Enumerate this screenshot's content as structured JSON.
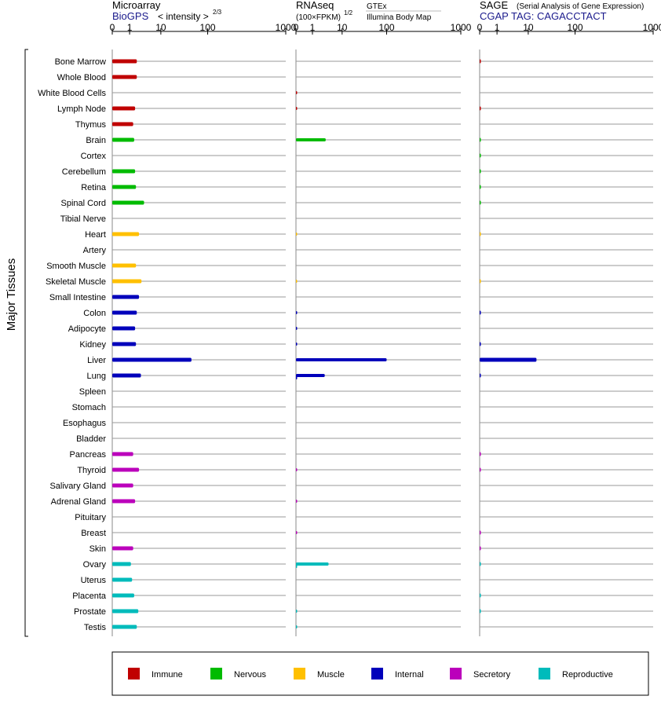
{
  "colors": {
    "immune": "#c00000",
    "nervous": "#00bb00",
    "muscle": "#ffc000",
    "internal": "#0000bb",
    "secretory": "#bb00bb",
    "reproductive": "#00bbbb",
    "link_blue": "#1a1a8c",
    "grid_line": "#999999"
  },
  "headers": {
    "microarray": {
      "title": "Microarray",
      "source": "BioGPS",
      "unit": "< intensity >",
      "unit_exp": "2/3"
    },
    "rnaseq": {
      "title": "RNAseq",
      "unit": "(100×FPKM)",
      "unit_exp": "1/2",
      "source_a": "GTEx",
      "source_b": "Illumina Body Map"
    },
    "sage": {
      "title": "SAGE",
      "subtitle": "(Serial Analysis of Gene Expression)",
      "tag": "CGAP TAG: CAGACCTACT"
    }
  },
  "group_label": "Major Tissues",
  "legend": [
    {
      "label": "Immune",
      "color": "#c00000"
    },
    {
      "label": "Nervous",
      "color": "#00bb00"
    },
    {
      "label": "Muscle",
      "color": "#ffc000"
    },
    {
      "label": "Internal",
      "color": "#0000bb"
    },
    {
      "label": "Secretory",
      "color": "#bb00bb"
    },
    {
      "label": "Reproductive",
      "color": "#00bbbb"
    }
  ],
  "chart_data": {
    "type": "bar",
    "orientation": "horizontal",
    "axis_ticks": [
      "0",
      "1",
      "10",
      "100",
      "1000"
    ],
    "axis_tick_values": [
      0,
      1,
      10,
      100,
      1000
    ],
    "categories": [
      "Bone Marrow",
      "Whole Blood",
      "White Blood Cells",
      "Lymph Node",
      "Thymus",
      "Brain",
      "Cortex",
      "Cerebellum",
      "Retina",
      "Spinal Cord",
      "Tibial Nerve",
      "Heart",
      "Artery",
      "Smooth Muscle",
      "Skeletal Muscle",
      "Small Intestine",
      "Colon",
      "Adipocyte",
      "Kidney",
      "Liver",
      "Lung",
      "Spleen",
      "Stomach",
      "Esophagus",
      "Bladder",
      "Pancreas",
      "Thyroid",
      "Salivary Gland",
      "Adrenal Gland",
      "Pituitary",
      "Breast",
      "Skin",
      "Ovary",
      "Uterus",
      "Placenta",
      "Prostate",
      "Testis"
    ],
    "category_groups": [
      "immune",
      "immune",
      "immune",
      "immune",
      "immune",
      "nervous",
      "nervous",
      "nervous",
      "nervous",
      "nervous",
      "nervous",
      "muscle",
      "muscle",
      "muscle",
      "muscle",
      "internal",
      "internal",
      "internal",
      "internal",
      "internal",
      "internal",
      "internal",
      "internal",
      "internal",
      "internal",
      "secretory",
      "secretory",
      "secretory",
      "secretory",
      "secretory",
      "secretory",
      "secretory",
      "reproductive",
      "reproductive",
      "reproductive",
      "reproductive",
      "reproductive"
    ],
    "series": [
      {
        "name": "Microarray",
        "values": [
          1.7,
          1.7,
          null,
          1.5,
          1.3,
          1.4,
          null,
          1.5,
          1.6,
          2.9,
          null,
          2.0,
          null,
          1.6,
          2.4,
          2.0,
          1.7,
          1.5,
          1.6,
          45,
          2.3,
          null,
          null,
          null,
          null,
          1.3,
          2.0,
          1.3,
          1.5,
          null,
          null,
          1.3,
          1.1,
          1.2,
          1.4,
          1.9,
          1.7
        ]
      },
      {
        "name": "GTEx",
        "values": [
          null,
          null,
          0.02,
          0.02,
          null,
          2.8,
          null,
          null,
          null,
          null,
          null,
          0.02,
          null,
          null,
          0.02,
          null,
          0.04,
          0.04,
          0.03,
          100,
          2.6,
          null,
          null,
          null,
          null,
          null,
          0.03,
          null,
          0.03,
          null,
          0.02,
          null,
          3.5,
          null,
          null,
          0.03,
          0.05
        ]
      },
      {
        "name": "Illumina Body Map",
        "values": [
          null,
          null,
          null,
          null,
          null,
          null,
          null,
          null,
          null,
          null,
          null,
          null,
          null,
          null,
          null,
          null,
          null,
          null,
          null,
          null,
          0.03,
          null,
          null,
          null,
          null,
          null,
          null,
          null,
          null,
          null,
          null,
          null,
          0.03,
          null,
          null,
          null,
          null
        ]
      },
      {
        "name": "CGAP SAGE",
        "values": [
          0.03,
          null,
          null,
          0.02,
          null,
          0.02,
          0.02,
          0.02,
          0.02,
          0.02,
          null,
          0.01,
          null,
          null,
          0.02,
          null,
          0.03,
          null,
          0.03,
          15,
          0.03,
          null,
          null,
          null,
          null,
          0.03,
          0.02,
          null,
          null,
          null,
          0.02,
          0.02,
          0.02,
          null,
          0.02,
          0.02,
          null
        ]
      }
    ]
  }
}
